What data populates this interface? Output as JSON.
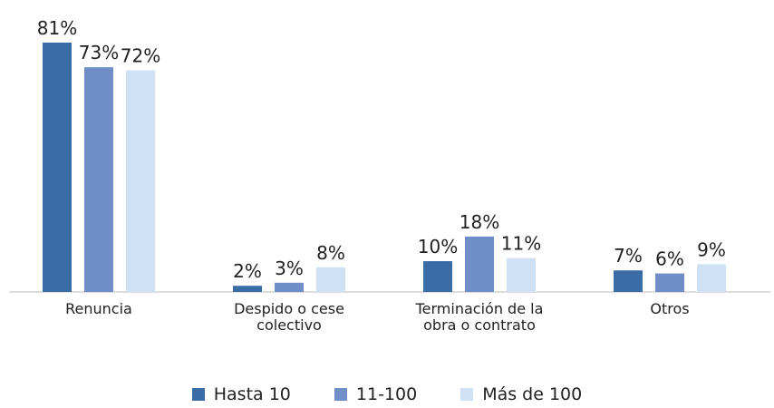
{
  "chart_data": {
    "type": "bar",
    "categories": [
      "Renuncia",
      "Despido o cese colectivo",
      "Terminación de la obra o contrato",
      "Otros"
    ],
    "series": [
      {
        "name": "Hasta 10",
        "color": "#3a6da6",
        "values": [
          81,
          2,
          10,
          7
        ],
        "value_labels": [
          "81%",
          "2%",
          "10%",
          "7%"
        ]
      },
      {
        "name": "11-100",
        "color": "#6f8ec8",
        "values": [
          73,
          3,
          18,
          6
        ],
        "value_labels": [
          "73%",
          "3%",
          "18%",
          "6%"
        ]
      },
      {
        "name": "Más de 100",
        "color": "#cfe1f4",
        "values": [
          72,
          8,
          11,
          9
        ],
        "value_labels": [
          "72%",
          "8%",
          "11%",
          "9%"
        ]
      }
    ],
    "legend": "bottom"
  }
}
